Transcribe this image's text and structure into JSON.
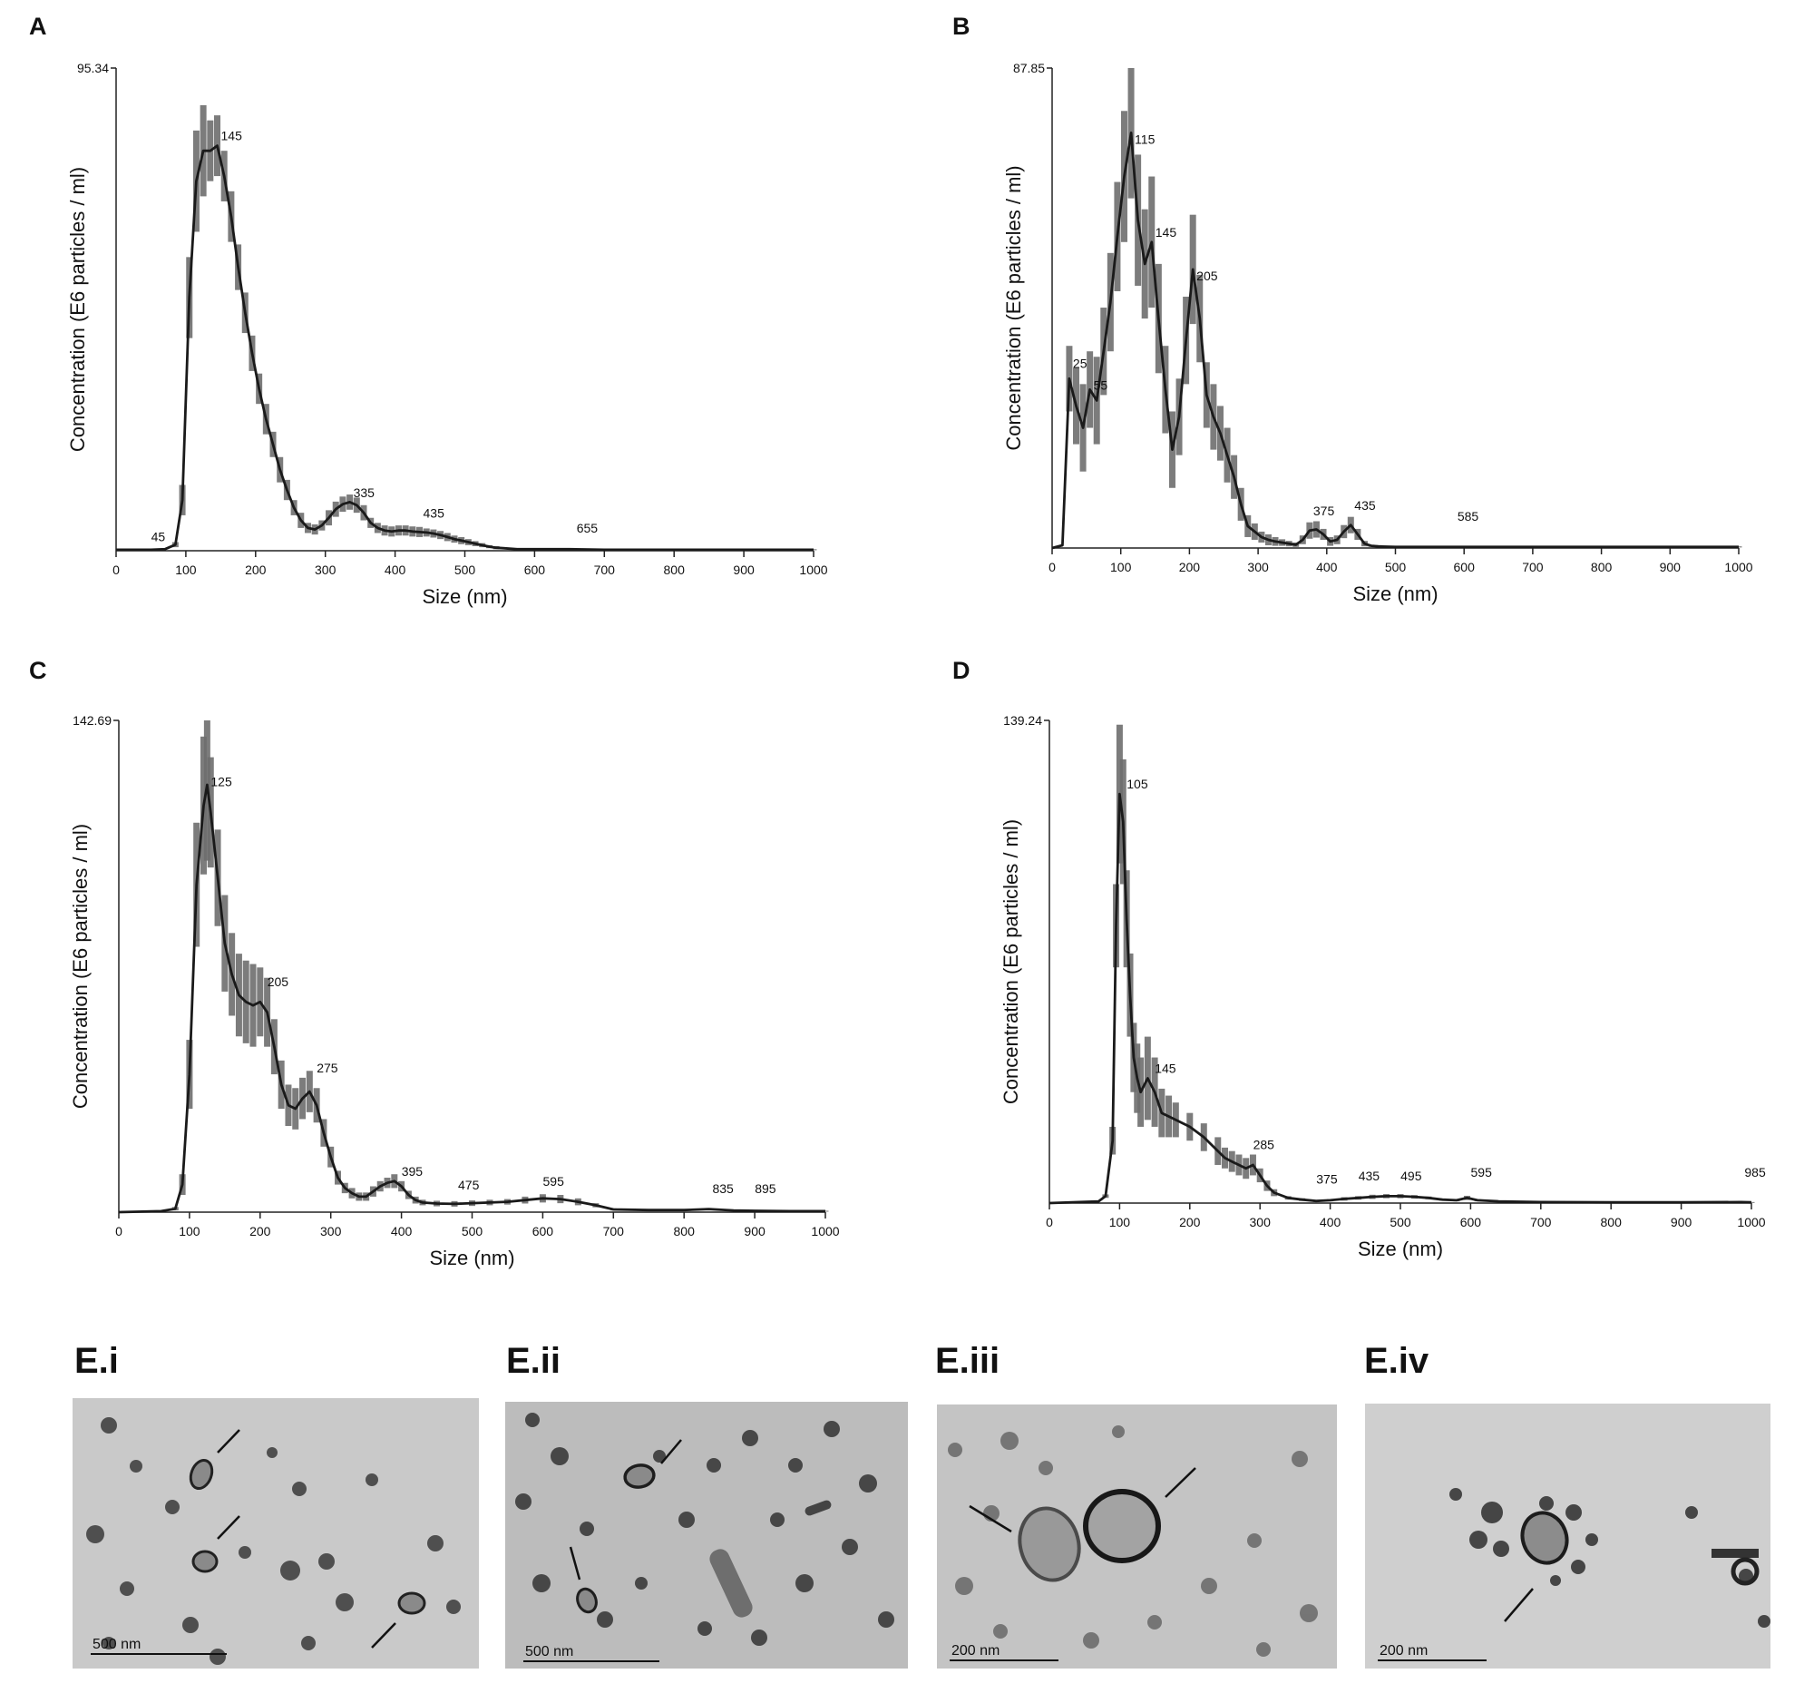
{
  "chart_data": [
    {
      "panel": "A",
      "type": "line",
      "xlabel": "Size (nm)",
      "ylabel": "Concentration (E6 particles / ml)",
      "xlim": [
        0,
        1000
      ],
      "ylim": [
        0,
        95.34
      ],
      "y_max_label": "95.34",
      "x_ticks": [
        "0",
        "100",
        "200",
        "300",
        "400",
        "500",
        "600",
        "700",
        "800",
        "900",
        "1000"
      ],
      "peak_labels": [
        {
          "x": 45,
          "y": 0.8,
          "text": "45"
        },
        {
          "x": 145,
          "y": 80,
          "text": "145"
        },
        {
          "x": 335,
          "y": 9.5,
          "text": "335"
        },
        {
          "x": 435,
          "y": 5.5,
          "text": "435"
        },
        {
          "x": 655,
          "y": 2.5,
          "text": "655"
        }
      ],
      "x": [
        0,
        50,
        70,
        85,
        95,
        105,
        115,
        125,
        135,
        145,
        155,
        165,
        175,
        185,
        195,
        205,
        215,
        225,
        235,
        245,
        255,
        265,
        275,
        285,
        295,
        305,
        315,
        325,
        335,
        345,
        355,
        365,
        375,
        385,
        395,
        405,
        415,
        425,
        435,
        445,
        455,
        465,
        475,
        485,
        495,
        505,
        515,
        525,
        535,
        545,
        555,
        575,
        600,
        650,
        700,
        800,
        900,
        1000
      ],
      "values": [
        0.2,
        0.2,
        0.3,
        1.2,
        10,
        50,
        73,
        79,
        79,
        80,
        74,
        66,
        56,
        47,
        39,
        32,
        26,
        21,
        16,
        12,
        8.5,
        6,
        4.5,
        4.2,
        5,
        6.5,
        8.2,
        9.2,
        9.6,
        9,
        7.5,
        5.5,
        4.5,
        4,
        3.8,
        4,
        4,
        3.8,
        3.7,
        3.6,
        3.4,
        3.1,
        2.7,
        2.3,
        2,
        1.7,
        1.4,
        1.1,
        0.8,
        0.6,
        0.5,
        0.3,
        0.3,
        0.3,
        0.2,
        0.2,
        0.2,
        0.2
      ],
      "error_half_widths": [
        0,
        0,
        0,
        0.5,
        3,
        8,
        10,
        9,
        6,
        6,
        5,
        5,
        4.5,
        4,
        3.5,
        3,
        3,
        2.5,
        2.5,
        2,
        1.5,
        1.5,
        1,
        1,
        1,
        1.5,
        1.5,
        1.5,
        1.5,
        1.5,
        1.5,
        1,
        1,
        1,
        1,
        1,
        1,
        1,
        1,
        0.8,
        0.8,
        0.8,
        0.8,
        0.7,
        0.7,
        0.6,
        0.5,
        0.4,
        0.3,
        0.3,
        0.2,
        0.1,
        0.1,
        0.1,
        0.1,
        0.1,
        0.1,
        0.1
      ]
    },
    {
      "panel": "B",
      "type": "line",
      "xlabel": "Size (nm)",
      "ylabel": "Concentration (E6 particles / ml)",
      "xlim": [
        0,
        1000
      ],
      "ylim": [
        0,
        87.85
      ],
      "y_max_label": "87.85",
      "x_ticks": [
        "0",
        "100",
        "200",
        "300",
        "400",
        "500",
        "600",
        "700",
        "800",
        "900",
        "1000"
      ],
      "peak_labels": [
        {
          "x": 25,
          "y": 32,
          "text": "25"
        },
        {
          "x": 55,
          "y": 28,
          "text": "55"
        },
        {
          "x": 115,
          "y": 73,
          "text": "115"
        },
        {
          "x": 145,
          "y": 56,
          "text": "145"
        },
        {
          "x": 205,
          "y": 48,
          "text": "205"
        },
        {
          "x": 375,
          "y": 5,
          "text": "375"
        },
        {
          "x": 435,
          "y": 6,
          "text": "435"
        },
        {
          "x": 585,
          "y": 4,
          "text": "585"
        }
      ],
      "x": [
        0,
        15,
        25,
        35,
        45,
        55,
        65,
        75,
        85,
        95,
        105,
        115,
        125,
        135,
        145,
        155,
        165,
        175,
        185,
        195,
        205,
        215,
        225,
        235,
        245,
        255,
        265,
        275,
        285,
        295,
        305,
        315,
        325,
        335,
        345,
        355,
        365,
        375,
        385,
        395,
        405,
        415,
        425,
        435,
        445,
        455,
        465,
        475,
        500,
        600,
        700,
        800,
        900,
        1000
      ],
      "values": [
        0,
        0.5,
        31,
        26,
        22,
        29,
        27,
        36,
        45,
        57,
        68,
        76,
        60,
        52,
        56,
        42,
        29,
        18,
        24,
        38,
        51,
        42,
        28,
        24,
        21,
        17,
        13,
        8,
        4,
        3,
        2,
        1.5,
        1.2,
        1,
        0.8,
        0.6,
        1.5,
        3.2,
        3.4,
        2.5,
        1.2,
        1.5,
        3,
        4.2,
        2.5,
        0.8,
        0.4,
        0.3,
        0.2,
        0.2,
        0.2,
        0.2,
        0.2,
        0.2
      ],
      "error_half_widths": [
        0,
        0,
        6,
        7,
        8,
        7,
        8,
        8,
        9,
        10,
        12,
        12,
        12,
        10,
        12,
        10,
        8,
        7,
        7,
        8,
        10,
        8,
        6,
        6,
        5,
        5,
        4,
        3,
        2,
        1.5,
        1,
        1,
        0.8,
        0.6,
        0.5,
        0.4,
        0.8,
        1.5,
        1.5,
        1,
        0.8,
        0.8,
        1.2,
        1.5,
        1,
        0.5,
        0.2,
        0.2,
        0.1,
        0.1,
        0.1,
        0.1,
        0.1,
        0.1
      ]
    },
    {
      "panel": "C",
      "type": "line",
      "xlabel": "Size (nm)",
      "ylabel": "Concentration (E6 particles / ml)",
      "xlim": [
        0,
        1000
      ],
      "ylim": [
        0,
        142.69
      ],
      "y_max_label": "142.69",
      "x_ticks": [
        "0",
        "100",
        "200",
        "300",
        "400",
        "500",
        "600",
        "700",
        "800",
        "900",
        "1000"
      ],
      "peak_labels": [
        {
          "x": 125,
          "y": 122,
          "text": "125"
        },
        {
          "x": 205,
          "y": 64,
          "text": "205"
        },
        {
          "x": 275,
          "y": 39,
          "text": "275"
        },
        {
          "x": 395,
          "y": 9,
          "text": "395"
        },
        {
          "x": 475,
          "y": 5,
          "text": "475"
        },
        {
          "x": 595,
          "y": 6,
          "text": "595"
        },
        {
          "x": 835,
          "y": 4,
          "text": "835"
        },
        {
          "x": 895,
          "y": 4,
          "text": "895"
        }
      ],
      "x": [
        0,
        60,
        80,
        90,
        100,
        110,
        120,
        125,
        130,
        140,
        150,
        160,
        170,
        180,
        190,
        200,
        210,
        220,
        230,
        240,
        250,
        260,
        270,
        280,
        290,
        300,
        310,
        320,
        330,
        340,
        350,
        360,
        370,
        380,
        390,
        400,
        410,
        420,
        430,
        450,
        475,
        500,
        525,
        550,
        575,
        600,
        625,
        650,
        675,
        700,
        750,
        800,
        835,
        870,
        900,
        950,
        1000
      ],
      "values": [
        0,
        0.3,
        1,
        8,
        40,
        95,
        118,
        124,
        116,
        97,
        78,
        69,
        63,
        61,
        60,
        61,
        58,
        48,
        37,
        31,
        30,
        33,
        35,
        31,
        23,
        16,
        10,
        7,
        5.5,
        4.5,
        4.5,
        6,
        7.5,
        8.5,
        9,
        7.5,
        5,
        3.5,
        2.8,
        2.5,
        2.4,
        2.6,
        2.8,
        3,
        3.5,
        4,
        3.8,
        3,
        2,
        0.8,
        0.6,
        0.6,
        0.9,
        0.5,
        0.4,
        0.3,
        0.3
      ],
      "error_half_widths": [
        0,
        0,
        0.5,
        3,
        10,
        18,
        20,
        22,
        16,
        14,
        14,
        12,
        12,
        12,
        12,
        10,
        10,
        8,
        7,
        6,
        6,
        6,
        6,
        5,
        4,
        3,
        2,
        1.5,
        1.5,
        1.2,
        1.2,
        1.5,
        1.5,
        1.5,
        2,
        1.5,
        1.2,
        1,
        0.8,
        0.8,
        0.8,
        0.8,
        0.8,
        0.8,
        1,
        1.2,
        1.2,
        1,
        0.6,
        0.3,
        0.2,
        0.2,
        0.3,
        0.2,
        0.1,
        0.1,
        0.1
      ]
    },
    {
      "panel": "D",
      "type": "line",
      "xlabel": "Size (nm)",
      "ylabel": "Concentration (E6 particles / ml)",
      "xlim": [
        0,
        1000
      ],
      "ylim": [
        0,
        139.24
      ],
      "y_max_label": "139.24",
      "x_ticks": [
        "0",
        "100",
        "200",
        "300",
        "400",
        "500",
        "600",
        "700",
        "800",
        "900",
        "1000"
      ],
      "peak_labels": [
        {
          "x": 105,
          "y": 118,
          "text": "105"
        },
        {
          "x": 145,
          "y": 36,
          "text": "145"
        },
        {
          "x": 285,
          "y": 14,
          "text": "285"
        },
        {
          "x": 375,
          "y": 4,
          "text": "375"
        },
        {
          "x": 435,
          "y": 5,
          "text": "435"
        },
        {
          "x": 495,
          "y": 5,
          "text": "495"
        },
        {
          "x": 595,
          "y": 6,
          "text": "595"
        },
        {
          "x": 985,
          "y": 6,
          "text": "985"
        }
      ],
      "x": [
        0,
        70,
        80,
        90,
        95,
        100,
        105,
        110,
        115,
        120,
        125,
        130,
        140,
        150,
        160,
        170,
        180,
        200,
        220,
        240,
        250,
        260,
        270,
        280,
        290,
        300,
        310,
        320,
        340,
        360,
        380,
        400,
        420,
        440,
        460,
        480,
        500,
        520,
        540,
        560,
        580,
        595,
        610,
        640,
        700,
        800,
        900,
        985,
        1000
      ],
      "values": [
        0,
        0.5,
        2,
        18,
        80,
        118,
        110,
        82,
        60,
        42,
        36,
        32,
        36,
        32,
        26,
        25,
        24,
        22,
        19,
        15,
        13,
        12,
        11,
        10,
        11,
        8,
        5,
        3,
        1.5,
        1,
        0.6,
        0.8,
        1.2,
        1.5,
        1.8,
        2,
        2,
        1.8,
        1.5,
        1,
        0.8,
        1.5,
        0.8,
        0.5,
        0.3,
        0.2,
        0.2,
        0.3,
        0.2
      ],
      "error_half_widths": [
        0,
        0,
        0.5,
        4,
        12,
        20,
        18,
        14,
        12,
        10,
        10,
        10,
        12,
        10,
        7,
        6,
        5,
        4,
        4,
        4,
        3,
        3,
        3,
        3,
        3,
        2,
        1.5,
        1,
        0.5,
        0.4,
        0.3,
        0.3,
        0.5,
        0.5,
        0.6,
        0.6,
        0.6,
        0.5,
        0.4,
        0.3,
        0.3,
        0.6,
        0.3,
        0.2,
        0.1,
        0.1,
        0.1,
        0.1,
        0.1
      ]
    }
  ],
  "panel_letters": [
    "A",
    "B",
    "C",
    "D"
  ],
  "micrographs": [
    {
      "label": "E.i",
      "scale_bar": "500 nm",
      "background": "#c9c9c9"
    },
    {
      "label": "E.ii",
      "scale_bar": "500 nm",
      "background": "#bcbcbc"
    },
    {
      "label": "E.iii",
      "scale_bar": "200 nm",
      "background": "#c4c4c4"
    },
    {
      "label": "E.iv",
      "scale_bar": "200 nm",
      "background": "#cfcfcf"
    }
  ],
  "colors": {
    "curve": "#1a1a1a",
    "error_bar": "#6e6e6e",
    "axis": "#222222",
    "text": "#111111"
  }
}
